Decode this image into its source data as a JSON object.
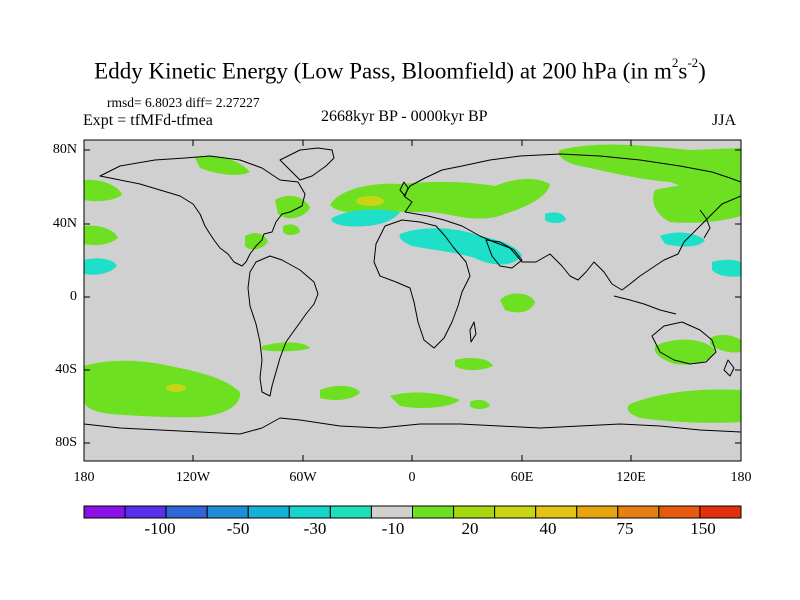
{
  "title": {
    "main": "Eddy Kinetic Energy (Low Pass, Bloomfield) at 200 hPa (in m",
    "sup1": "2",
    "s": "s",
    "sup2": "-2",
    "close": ")"
  },
  "stats": "rmsd= 6.8023 diff= 2.27227",
  "expt": "Expt = tfMFd-tfmea",
  "period": "2668kyr BP - 0000kyr BP",
  "season": "JJA",
  "y_ticks": [
    "80N",
    "40N",
    "0",
    "40S",
    "80S"
  ],
  "x_ticks": [
    "180",
    "120W",
    "60W",
    "0",
    "60E",
    "120E",
    "180"
  ],
  "colorbar": {
    "colors": [
      "#8a12e8",
      "#5a2ee6",
      "#2e66d8",
      "#1e8ed4",
      "#14b2d8",
      "#18d2cc",
      "#1ee0b8",
      "#d0d0d0",
      "#6ee022",
      "#a4d612",
      "#c8d414",
      "#e2c414",
      "#e6a410",
      "#e48010",
      "#e45a0e",
      "#e0300c"
    ],
    "labels": [
      "-100",
      "-50",
      "-30",
      "-10",
      "20",
      "40",
      "75",
      "150"
    ]
  },
  "map_colors": {
    "background": "#d0d0d0",
    "green": "#6ee022",
    "cyan": "#1ee0c8",
    "yellow": "#c8d414"
  }
}
